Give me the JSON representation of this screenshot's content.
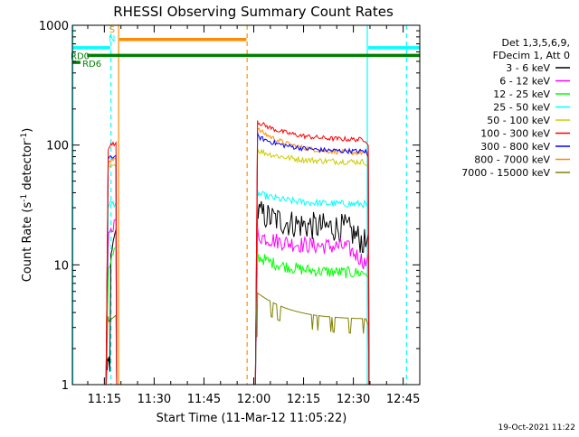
{
  "chart_data": {
    "type": "line",
    "title": "RHESSI Observing Summary Count Rates",
    "xlabel": "Start Time (11-Mar-12 11:05:22)",
    "ylabel_main": "Count Rate (s",
    "ylabel_sup1": "-1",
    "ylabel_mid": " detector",
    "ylabel_sup2": "-1",
    "ylabel_end": ")",
    "timestamp": "19-Oct-2021 11:22",
    "x_range_minutes": [
      665.37,
      770
    ],
    "y_scale": "log",
    "y_range": [
      1,
      1000
    ],
    "x_ticks": [
      {
        "label": "11:15",
        "minutes": 675
      },
      {
        "label": "11:30",
        "minutes": 690
      },
      {
        "label": "11:45",
        "minutes": 705
      },
      {
        "label": "12:00",
        "minutes": 720
      },
      {
        "label": "12:15",
        "minutes": 735
      },
      {
        "label": "12:30",
        "minutes": 750
      },
      {
        "label": "12:45",
        "minutes": 765
      }
    ],
    "y_ticks": [
      {
        "label": "1",
        "value": 1
      },
      {
        "label": "10",
        "value": 10
      },
      {
        "label": "100",
        "value": 100
      },
      {
        "label": "1000",
        "value": 1000
      }
    ],
    "legend": {
      "placement": "right",
      "header": [
        "Det 1,3,5,6,9,",
        "FDecim 1, Att 0"
      ]
    },
    "intervals": [
      [
        675.5,
        678.5
      ],
      [
        720.5,
        754.5
      ]
    ],
    "series": [
      {
        "name": "3 - 6 keV",
        "color": "#000000",
        "shape": "rise",
        "start": 1.3,
        "end": 20,
        "level": 20,
        "peak": 28,
        "noise": 0.12,
        "rate": 1
      },
      {
        "name": "6 - 12 keV",
        "color": "#ff00ff",
        "shape": "rise",
        "start": 13,
        "end": 24,
        "level": 14,
        "peak": 18,
        "noise": 0.07,
        "rate": 1
      },
      {
        "name": "12 - 25 keV",
        "color": "#00ff00",
        "shape": "flat",
        "start": 8,
        "end": 14,
        "level": 8.5,
        "peak": 12,
        "noise": 0.05,
        "rate": 1
      },
      {
        "name": "25 - 50 keV",
        "color": "#00ffff",
        "shape": "flat",
        "start": 32,
        "end": 33,
        "level": 32,
        "peak": 40,
        "noise": 0.03,
        "rate": 1
      },
      {
        "name": "50 - 100 keV",
        "color": "#cccc00",
        "shape": "flat",
        "start": 65,
        "end": 66,
        "level": 72,
        "peak": 92,
        "noise": 0.025,
        "rate": 1
      },
      {
        "name": "100 - 300 keV",
        "color": "#ff0000",
        "shape": "flat",
        "start": 95,
        "end": 105,
        "level": 110,
        "peak": 160,
        "noise": 0.02,
        "rate": 1
      },
      {
        "name": "300 - 800 keV",
        "color": "#0000ff",
        "shape": "flat",
        "start": 75,
        "end": 82,
        "level": 88,
        "peak": 120,
        "noise": 0.02,
        "rate": 1
      },
      {
        "name": "800 - 7000 keV",
        "color": "#ff8c00",
        "shape": "flat",
        "start": 68,
        "end": 78,
        "level": 85,
        "peak": 140,
        "noise": 0.02,
        "rate": 1
      },
      {
        "name": "7000 - 15000 keV",
        "color": "#808000",
        "shape": "step",
        "start": 3.2,
        "end": 3.8,
        "level": 3.5,
        "peak": 6,
        "noise": 0.15,
        "rate": 1
      }
    ],
    "flags": [
      {
        "label": "RD0",
        "color": "#007f00",
        "value": 560,
        "x_start": 669.8,
        "x_end": 770
      },
      {
        "label": "RD6",
        "color": "#007f00",
        "value": 490,
        "x_start": 665.5,
        "x_end": 667.8
      },
      {
        "label": "S",
        "color": "#ff8c00",
        "value": 760,
        "x_start": 679.5,
        "x_end": 717.8
      },
      {
        "label": "N",
        "color": "#00ffff",
        "value": 650,
        "x_start": 665.5,
        "x_end": 676.8
      }
    ],
    "cyan_segment_right": {
      "color": "#00ffff",
      "value": 650,
      "x_start": 754.5,
      "x_end": 770
    },
    "vlines": [
      {
        "minutes": 665.5,
        "color": "#00ffff",
        "style": "solid"
      },
      {
        "minutes": 677.0,
        "color": "#00ffff",
        "style": "dashed"
      },
      {
        "minutes": 679.3,
        "color": "#ff8c00",
        "style": "solid"
      },
      {
        "minutes": 718.0,
        "color": "#ff8c00",
        "style": "dashed"
      },
      {
        "minutes": 754.2,
        "color": "#00ffff",
        "style": "solid"
      },
      {
        "minutes": 766.0,
        "color": "#00ffff",
        "style": "dashed"
      }
    ]
  }
}
